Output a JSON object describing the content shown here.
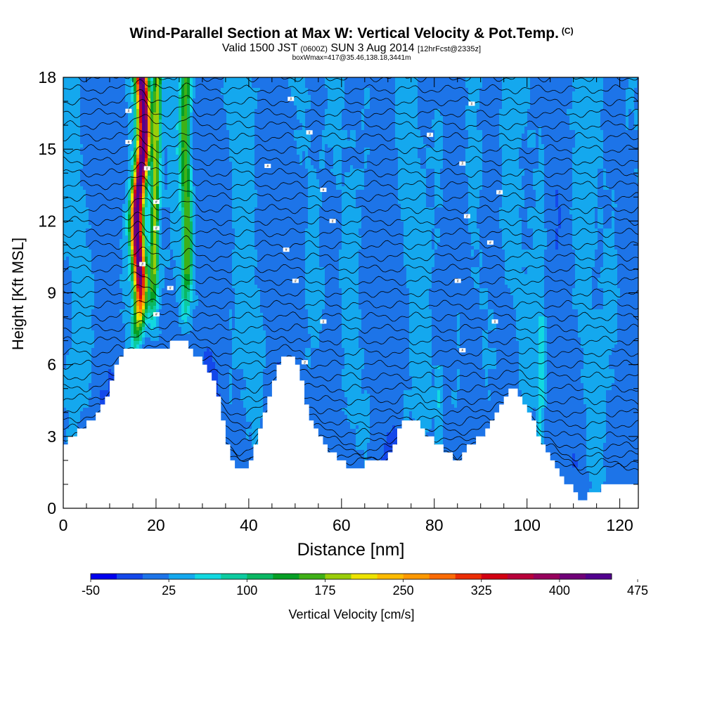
{
  "chart_data": {
    "type": "heatmap",
    "title": "Wind-Parallel Section at Max W: Vertical Velocity & Pot.Temp.",
    "title_mark": "(C)",
    "subtitle": {
      "valid_text": "Valid 1500 JST",
      "utc_text": "(0600Z)",
      "date_text": "SUN 3 Aug 2014",
      "forecast_text": "[12hrFcst@2335z]"
    },
    "box_info": "boxWmax=417@35.46,138.18,3441m",
    "xlabel": "Distance [nm]",
    "ylabel": "Height [Kft MSL]",
    "xlim": [
      0,
      124
    ],
    "ylim": [
      0,
      18
    ],
    "x_ticks": [
      "0",
      "20",
      "40",
      "60",
      "80",
      "100",
      "120"
    ],
    "y_ticks": [
      "0",
      "3",
      "6",
      "9",
      "12",
      "15",
      "18"
    ],
    "colorbar": {
      "label": "Vertical Velocity [cm/s]",
      "tick_labels": [
        "-50",
        "25",
        "100",
        "175",
        "250",
        "325",
        "400",
        "475"
      ],
      "colors": [
        "#0000ee",
        "#1448ea",
        "#1d74e8",
        "#14a8ee",
        "#12d8e0",
        "#0dcba0",
        "#0bb763",
        "#079f25",
        "#3fb017",
        "#9acd0a",
        "#ede300",
        "#fdbb00",
        "#fd9800",
        "#fb6b05",
        "#eb2d05",
        "#d20012",
        "#b8003a",
        "#96005c",
        "#700078",
        "#52008e"
      ]
    },
    "terrain": [
      [
        0,
        2.7
      ],
      [
        2,
        2.9
      ],
      [
        4,
        3.3
      ],
      [
        6,
        3.6
      ],
      [
        8,
        4.0
      ],
      [
        10,
        4.9
      ],
      [
        11,
        5.6
      ],
      [
        12,
        6.2
      ],
      [
        13,
        6.5
      ],
      [
        14,
        6.6
      ],
      [
        16,
        6.6
      ],
      [
        18,
        6.6
      ],
      [
        20,
        6.7
      ],
      [
        22,
        6.6
      ],
      [
        24,
        7.0
      ],
      [
        26,
        7.2
      ],
      [
        28,
        6.6
      ],
      [
        30,
        6.1
      ],
      [
        32,
        5.6
      ],
      [
        33,
        5.0
      ],
      [
        34,
        4.0
      ],
      [
        35,
        3.2
      ],
      [
        36,
        2.4
      ],
      [
        37,
        1.9
      ],
      [
        38,
        1.6
      ],
      [
        40,
        1.7
      ],
      [
        41,
        2.3
      ],
      [
        42,
        3.2
      ],
      [
        44,
        4.2
      ],
      [
        46,
        5.6
      ],
      [
        47,
        6.2
      ],
      [
        50,
        6.2
      ],
      [
        51,
        5.8
      ],
      [
        52,
        4.6
      ],
      [
        53,
        3.8
      ],
      [
        55,
        3.0
      ],
      [
        57,
        2.6
      ],
      [
        59,
        2.1
      ],
      [
        61,
        1.8
      ],
      [
        63,
        1.6
      ],
      [
        65,
        1.9
      ],
      [
        67,
        1.9
      ],
      [
        70,
        2.2
      ],
      [
        72,
        2.9
      ],
      [
        73,
        3.5
      ],
      [
        77,
        3.6
      ],
      [
        78,
        3.0
      ],
      [
        80,
        2.8
      ],
      [
        82,
        2.5
      ],
      [
        84,
        2.2
      ],
      [
        85,
        2.0
      ],
      [
        87,
        2.5
      ],
      [
        89,
        2.8
      ],
      [
        92,
        3.5
      ],
      [
        94,
        4.3
      ],
      [
        96,
        4.9
      ],
      [
        98,
        4.9
      ],
      [
        99,
        4.6
      ],
      [
        101,
        3.8
      ],
      [
        103,
        2.9
      ],
      [
        105,
        2.3
      ],
      [
        107,
        1.6
      ],
      [
        109,
        1.0
      ],
      [
        111,
        0.5
      ],
      [
        112,
        0.3
      ],
      [
        114,
        0.6
      ],
      [
        116,
        0.9
      ],
      [
        118,
        1.0
      ],
      [
        124,
        1.0
      ]
    ],
    "updrafts": [
      {
        "x_center": 16.3,
        "peak_cm_s": 417,
        "base_height_kft": 6.6,
        "top_height_kft": 18
      },
      {
        "x_center": 26.5,
        "peak_cm_s": 150,
        "base_height_kft": 7.2,
        "top_height_kft": 18
      }
    ],
    "isentrope_label": "#"
  }
}
